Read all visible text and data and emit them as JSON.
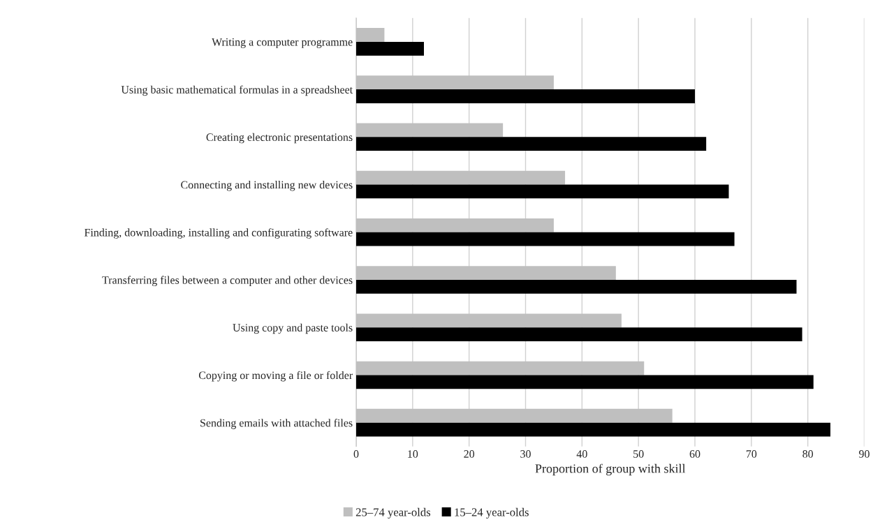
{
  "chart_data": {
    "type": "bar",
    "orientation": "horizontal",
    "xlabel": "Proportion of group with skill",
    "categories": [
      "Writing a computer programme",
      "Using basic mathematical formulas in a spreadsheet",
      "Creating electronic presentations",
      "Connecting and installing new devices",
      "Finding, downloading, installing and configurating software",
      "Transferring files between a computer and other devices",
      "Using copy and paste tools",
      "Copying or moving a file or folder",
      "Sending emails with attached files"
    ],
    "series": [
      {
        "name": "25–74 year-olds",
        "color": "#bfbfbf",
        "values": [
          5,
          35,
          26,
          37,
          35,
          46,
          47,
          51,
          56
        ]
      },
      {
        "name": "15–24 year-olds",
        "color": "#000000",
        "values": [
          12,
          60,
          62,
          66,
          67,
          78,
          79,
          81,
          84
        ]
      }
    ],
    "xlim": [
      0,
      90
    ],
    "xticks": [
      0,
      10,
      20,
      30,
      40,
      50,
      60,
      70,
      80,
      90
    ],
    "grid": "x",
    "legend": "bottom"
  }
}
